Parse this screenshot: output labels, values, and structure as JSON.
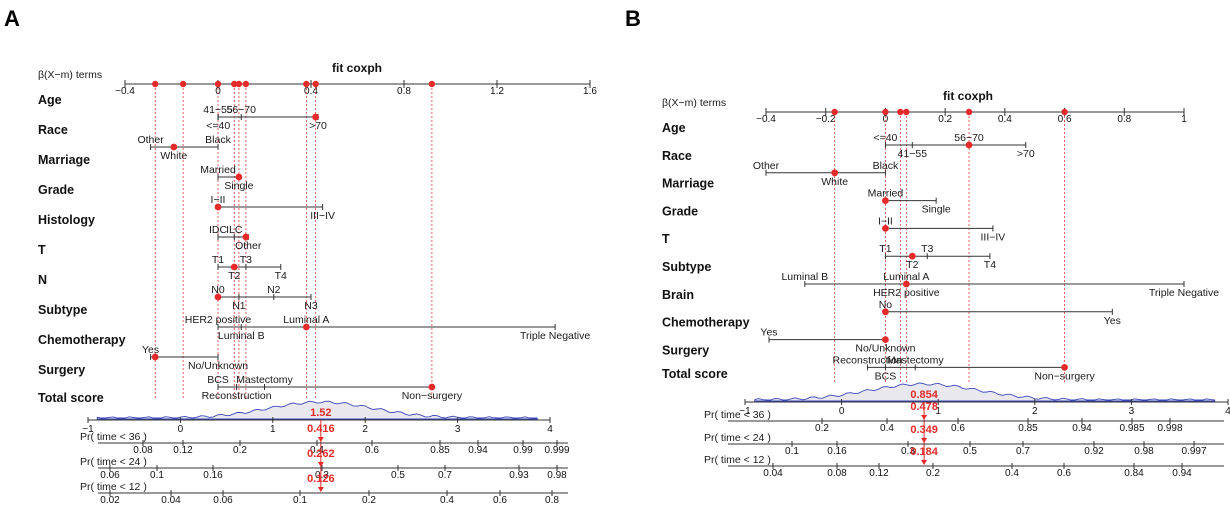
{
  "chart_data": [
    {
      "type": "nomogram",
      "panel": "A",
      "title": "fit coxph",
      "beta_label": "β(X−m) terms",
      "beta_range": [
        -0.4,
        1.6
      ],
      "beta_ticks": [
        -0.4,
        0,
        0.4,
        0.8,
        1.2,
        1.6
      ],
      "beta_tick_labels": [
        "−0.4",
        "0",
        "0.4",
        "0.8",
        "1.2",
        "1.6"
      ],
      "beta_points": [
        -0.27,
        -0.15,
        0,
        0.07,
        0.09,
        0.12,
        0.38,
        0.42,
        0.92
      ],
      "variables": [
        {
          "name": "Age",
          "levels": [
            {
              "label": "41−55",
              "value": 0,
              "pos": "above"
            },
            {
              "label": "56−70",
              "value": 0.1,
              "pos": "above"
            },
            {
              "label": "<=40",
              "value": 0.001,
              "pos": "below"
            },
            {
              "label": ">70",
              "value": 0.43,
              "pos": "below"
            }
          ],
          "selected": 0.42
        },
        {
          "name": "Race",
          "levels": [
            {
              "label": "Other",
              "value": -0.29,
              "pos": "above"
            },
            {
              "label": "Black",
              "value": 0,
              "pos": "above"
            },
            {
              "label": "White",
              "value": -0.19,
              "pos": "below"
            }
          ],
          "selected": -0.19
        },
        {
          "name": "Marriage",
          "levels": [
            {
              "label": "Married",
              "value": 0,
              "pos": "above"
            },
            {
              "label": "Single",
              "value": 0.09,
              "pos": "below"
            }
          ],
          "selected": 0.09
        },
        {
          "name": "Grade",
          "levels": [
            {
              "label": "I−II",
              "value": 0,
              "pos": "above"
            },
            {
              "label": "III−IV",
              "value": 0.45,
              "pos": "below"
            }
          ],
          "selected": 0
        },
        {
          "name": "Histology",
          "levels": [
            {
              "label": "IDC",
              "value": 0,
              "pos": "above"
            },
            {
              "label": "ILC",
              "value": 0.07,
              "pos": "above"
            },
            {
              "label": "Other",
              "value": 0.13,
              "pos": "below"
            }
          ],
          "selected": 0.12
        },
        {
          "name": "T",
          "levels": [
            {
              "label": "T1",
              "value": 0,
              "pos": "above"
            },
            {
              "label": "T3",
              "value": 0.12,
              "pos": "above"
            },
            {
              "label": "T2",
              "value": 0.07,
              "pos": "below"
            },
            {
              "label": "T4",
              "value": 0.27,
              "pos": "below"
            }
          ],
          "selected": 0.07
        },
        {
          "name": "N",
          "levels": [
            {
              "label": "N0",
              "value": 0,
              "pos": "above"
            },
            {
              "label": "N2",
              "value": 0.24,
              "pos": "above"
            },
            {
              "label": "N1",
              "value": 0.09,
              "pos": "below"
            },
            {
              "label": "N3",
              "value": 0.4,
              "pos": "below"
            }
          ],
          "selected": 0
        },
        {
          "name": "Subtype",
          "levels": [
            {
              "label": "HER2 positive",
              "value": 0,
              "pos": "above"
            },
            {
              "label": "Luminal A",
              "value": 0.38,
              "pos": "above"
            },
            {
              "label": "Luminal B",
              "value": 0.1,
              "pos": "below"
            },
            {
              "label": "Triple Negative",
              "value": 1.45,
              "pos": "below"
            }
          ],
          "selected": 0.38
        },
        {
          "name": "Chemotherapy",
          "levels": [
            {
              "label": "Yes",
              "value": -0.29,
              "pos": "above"
            },
            {
              "label": "No/Unknown",
              "value": 0,
              "pos": "below"
            }
          ],
          "selected": -0.27
        },
        {
          "name": "Surgery",
          "levels": [
            {
              "label": "BCS",
              "value": 0,
              "pos": "above"
            },
            {
              "label": "Mastectomy",
              "value": 0.2,
              "pos": "above"
            },
            {
              "label": "Reconstruction",
              "value": 0.08,
              "pos": "below"
            },
            {
              "label": "Non−surgery",
              "value": 0.92,
              "pos": "below"
            }
          ],
          "selected": 0.92
        }
      ],
      "total_score": {
        "label": "Total score",
        "range": [
          -1,
          4
        ],
        "ticks": [
          "−1",
          "0",
          "1",
          "2",
          "3",
          "4"
        ],
        "value": 1.52,
        "value_label": "1.52"
      },
      "survival_axes": [
        {
          "label": "Pr( time < 36 )",
          "ticks": [
            "0.08",
            "0.12",
            "0.2",
            "0.4",
            "0.6",
            "0.85",
            "0.94",
            "0.99",
            "0.999"
          ],
          "value_label": "0.416"
        },
        {
          "label": "Pr( time < 24 )",
          "ticks": [
            "0.06",
            "0.1",
            "0.16",
            "0.3",
            "0.5",
            "0.7",
            "0.93",
            "0.98"
          ],
          "value_label": "0.262"
        },
        {
          "label": "Pr( time < 12 )",
          "ticks": [
            "0.02",
            "0.04",
            "0.06",
            "0.1",
            "0.2",
            "0.4",
            "0.6",
            "0.8"
          ],
          "value_label": "0.126"
        }
      ]
    },
    {
      "type": "nomogram",
      "panel": "B",
      "title": "fit coxph",
      "beta_label": "β(X−m) terms",
      "beta_range": [
        -0.4,
        1.0
      ],
      "beta_ticks": [
        -0.4,
        -0.2,
        0,
        0.2,
        0.4,
        0.6,
        0.8,
        1
      ],
      "beta_tick_labels": [
        "−0.4",
        "−0.2",
        "0",
        "0.2",
        "0.4",
        "0.6",
        "0.8",
        "1"
      ],
      "beta_points": [
        -0.17,
        0,
        0.05,
        0.07,
        0.28,
        0.6
      ],
      "variables": [
        {
          "name": "Age",
          "levels": [
            {
              "label": "<=40",
              "value": 0,
              "pos": "above"
            },
            {
              "label": "56−70",
              "value": 0.28,
              "pos": "above"
            },
            {
              "label": "41−55",
              "value": 0.09,
              "pos": "below"
            },
            {
              "label": ">70",
              "value": 0.47,
              "pos": "below"
            }
          ],
          "selected": 0.28
        },
        {
          "name": "Race",
          "levels": [
            {
              "label": "Other",
              "value": -0.4,
              "pos": "above"
            },
            {
              "label": "Black",
              "value": 0,
              "pos": "above"
            },
            {
              "label": "White",
              "value": -0.17,
              "pos": "below"
            }
          ],
          "selected": -0.17
        },
        {
          "name": "Marriage",
          "levels": [
            {
              "label": "Married",
              "value": 0,
              "pos": "above"
            },
            {
              "label": "Single",
              "value": 0.17,
              "pos": "below"
            }
          ],
          "selected": 0
        },
        {
          "name": "Grade",
          "levels": [
            {
              "label": "I−II",
              "value": 0,
              "pos": "above"
            },
            {
              "label": "III−IV",
              "value": 0.36,
              "pos": "below"
            }
          ],
          "selected": 0
        },
        {
          "name": "T",
          "levels": [
            {
              "label": "T1",
              "value": 0,
              "pos": "above"
            },
            {
              "label": "T3",
              "value": 0.14,
              "pos": "above"
            },
            {
              "label": "T2",
              "value": 0.09,
              "pos": "below"
            },
            {
              "label": "T4",
              "value": 0.35,
              "pos": "below"
            }
          ],
          "selected": 0.09
        },
        {
          "name": "Subtype",
          "levels": [
            {
              "label": "Luminal B",
              "value": -0.27,
              "pos": "above"
            },
            {
              "label": "Luminal A",
              "value": 0.07,
              "pos": "above"
            },
            {
              "label": "HER2 positive",
              "value": 0.07,
              "pos": "below"
            },
            {
              "label": "Triple Negative",
              "value": 1.0,
              "pos": "below"
            }
          ],
          "selected": 0.07
        },
        {
          "name": "Brain",
          "levels": [
            {
              "label": "No",
              "value": 0,
              "pos": "above"
            },
            {
              "label": "Yes",
              "value": 0.76,
              "pos": "below"
            }
          ],
          "selected": 0
        },
        {
          "name": "Chemotherapy",
          "levels": [
            {
              "label": "Yes",
              "value": -0.39,
              "pos": "above"
            },
            {
              "label": "No/Unknown",
              "value": 0,
              "pos": "below"
            }
          ],
          "selected": 0
        },
        {
          "name": "Surgery",
          "levels": [
            {
              "label": "Reconstruction",
              "value": -0.06,
              "pos": "above"
            },
            {
              "label": "Mastectomy",
              "value": 0.1,
              "pos": "above"
            },
            {
              "label": "BCS",
              "value": 0,
              "pos": "below"
            },
            {
              "label": "Non−surgery",
              "value": 0.6,
              "pos": "below"
            }
          ],
          "selected": 0.6
        }
      ],
      "total_score": {
        "label": "Total score",
        "range": [
          -1,
          4
        ],
        "ticks": [
          "−1",
          "0",
          "1",
          "2",
          "3",
          "4"
        ],
        "value": 0.854,
        "value_label": "0.854"
      },
      "survival_axes": [
        {
          "label": "Pr( time < 36 )",
          "ticks": [
            "0.2",
            "0.4",
            "0.6",
            "0.85",
            "0.94",
            "0.985",
            "0.998"
          ],
          "value_label": "0.478"
        },
        {
          "label": "Pr( time < 24 )",
          "ticks": [
            "0.1",
            "0.16",
            "0.3",
            "0.5",
            "0.7",
            "0.92",
            "0.98",
            "0.997"
          ],
          "value_label": "0.349"
        },
        {
          "label": "Pr( time < 12 )",
          "ticks": [
            "0.04",
            "0.08",
            "0.12",
            "0.2",
            "0.4",
            "0.6",
            "0.84",
            "0.94"
          ],
          "value_label": "0.184"
        }
      ]
    }
  ]
}
